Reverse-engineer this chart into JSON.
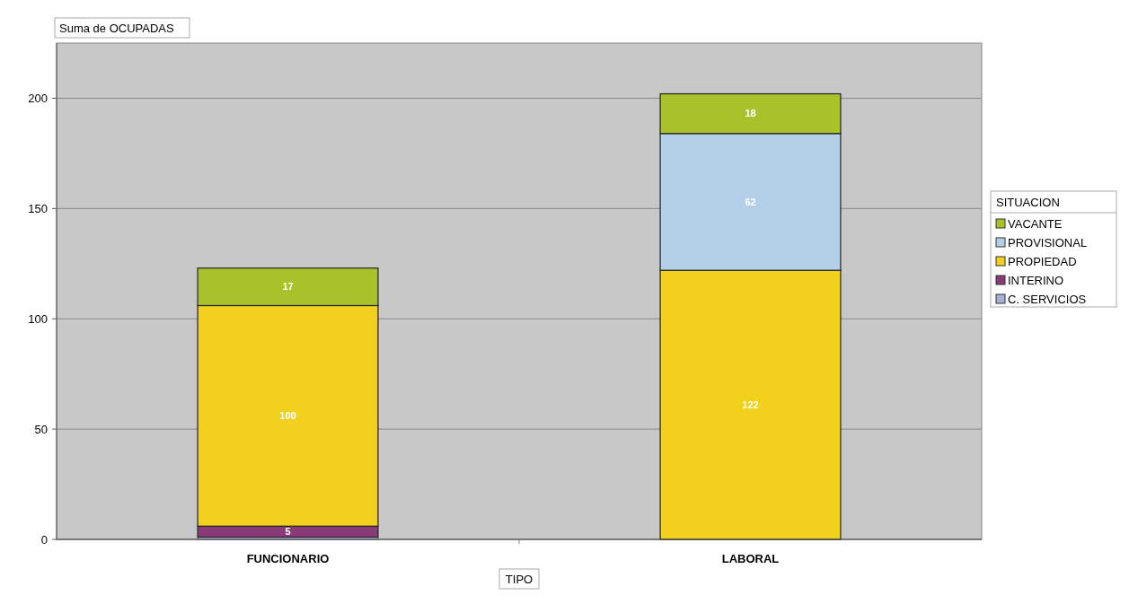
{
  "chart_data": {
    "type": "bar",
    "title": "Suma de OCUPADAS",
    "xlabel": "TIPO",
    "legend_title": "SITUACION",
    "categories": [
      "FUNCIONARIO",
      "LABORAL"
    ],
    "stacked": true,
    "series": [
      {
        "name": "C. SERVICIOS",
        "color": "#a8b0d8",
        "values": [
          1,
          null
        ],
        "value_labels": [
          null,
          null
        ]
      },
      {
        "name": "INTERINO",
        "color": "#8b3a78",
        "values": [
          5,
          null
        ],
        "value_labels": [
          "5",
          null
        ]
      },
      {
        "name": "PROPIEDAD",
        "color": "#f2d01e",
        "values": [
          100,
          122
        ],
        "value_labels": [
          "100",
          "122"
        ]
      },
      {
        "name": "PROVISIONAL",
        "color": "#b4d0e8",
        "values": [
          null,
          62
        ],
        "value_labels": [
          null,
          "62"
        ]
      },
      {
        "name": "VACANTE",
        "color": "#a9c22a",
        "values": [
          17,
          18
        ],
        "value_labels": [
          "17",
          "18"
        ]
      }
    ],
    "ylim": [
      0,
      225
    ],
    "yticks": [
      0,
      50,
      100,
      150,
      200
    ],
    "grid": "y",
    "legend": "right"
  }
}
